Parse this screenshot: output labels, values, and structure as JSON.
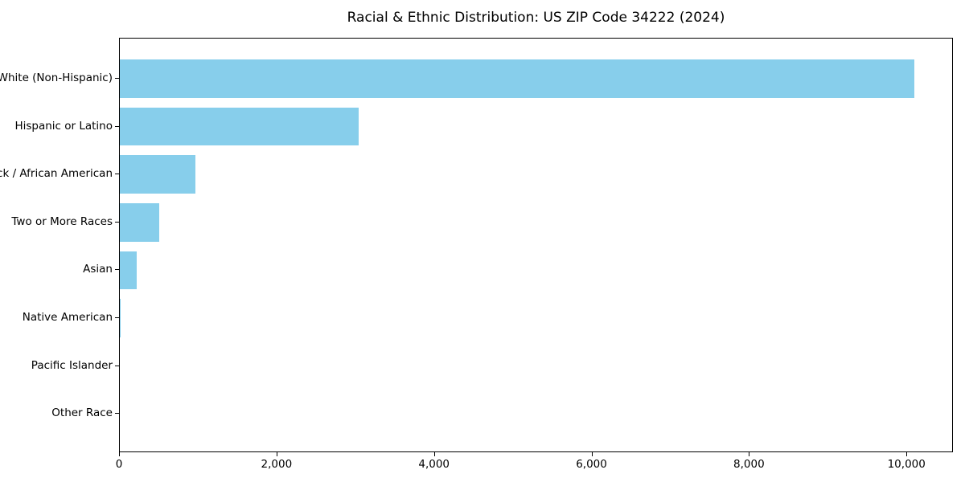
{
  "title": "Racial & Ethnic Distribution: US ZIP Code 34222 (2024)",
  "chart_data": {
    "type": "bar",
    "orientation": "horizontal",
    "title": "Racial & Ethnic Distribution: US ZIP Code 34222 (2024)",
    "xlabel": "",
    "ylabel": "",
    "categories": [
      "White (Non-Hispanic)",
      "Hispanic or Latino",
      "Black / African American",
      "Two or More Races",
      "Asian",
      "Native American",
      "Pacific Islander",
      "Other Race"
    ],
    "values": [
      10085,
      3030,
      955,
      505,
      210,
      15,
      0,
      0
    ],
    "x_ticks": [
      0,
      2000,
      4000,
      6000,
      8000,
      10000
    ],
    "x_tick_labels": [
      "0",
      "2,000",
      "4,000",
      "6,000",
      "8,000",
      "10,000"
    ],
    "xlim": [
      0,
      10590
    ],
    "grid": false,
    "legend": null,
    "bar_color": "#87CEEB",
    "frame_color": "#000000",
    "text_color": "#000000"
  }
}
